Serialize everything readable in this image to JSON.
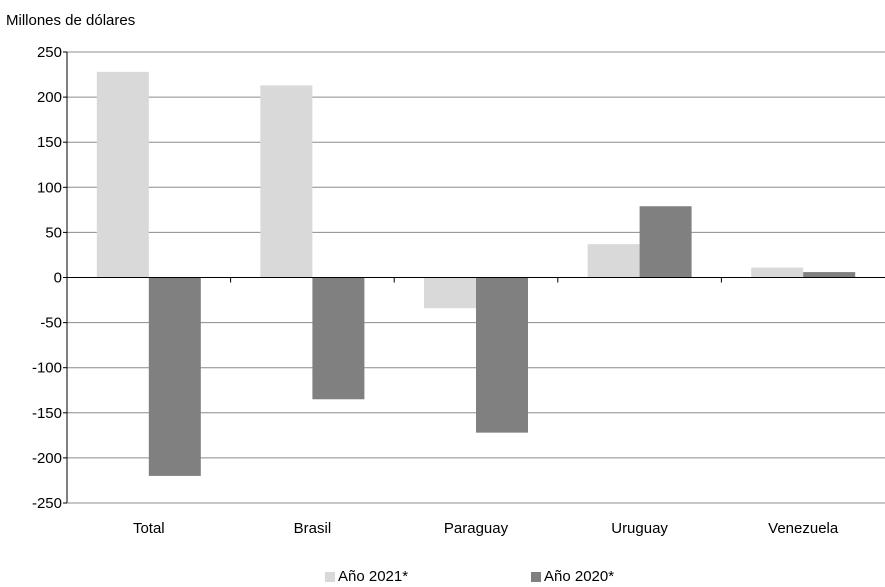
{
  "chart_data": {
    "type": "bar",
    "ylabel": "Millones de dólares",
    "xlabel": "",
    "title": "",
    "categories": [
      "Total",
      "Brasil",
      "Paraguay",
      "Uruguay",
      "Venezuela"
    ],
    "series": [
      {
        "name": "Año 2021*",
        "color": "#d9d9d9",
        "values": [
          228,
          213,
          -34,
          37,
          11
        ]
      },
      {
        "name": "Año 2020*",
        "color": "#808080",
        "values": [
          -220,
          -135,
          -172,
          79,
          6
        ]
      }
    ],
    "ylim": [
      -250,
      250
    ],
    "yticks": [
      250,
      200,
      150,
      100,
      50,
      0,
      -50,
      -100,
      -150,
      -200,
      -250
    ],
    "grid": true,
    "legend_position": "bottom-center"
  }
}
